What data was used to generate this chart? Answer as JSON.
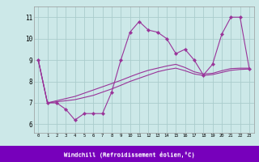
{
  "xlabel": "Windchill (Refroidissement éolien,°C)",
  "bg_color": "#cce8e8",
  "grid_color": "#aacccc",
  "line_color": "#993399",
  "xlabel_bg": "#7700bb",
  "x_ticks": [
    0,
    1,
    2,
    3,
    4,
    5,
    6,
    7,
    8,
    9,
    10,
    11,
    12,
    13,
    14,
    15,
    16,
    17,
    18,
    19,
    20,
    21,
    22,
    23
  ],
  "y_ticks": [
    6,
    7,
    8,
    9,
    10,
    11
  ],
  "ylim": [
    5.6,
    11.5
  ],
  "xlim": [
    -0.5,
    23.5
  ],
  "line1_x": [
    0,
    1,
    2,
    3,
    4,
    5,
    6,
    7,
    8,
    9,
    10,
    11,
    12,
    13,
    14,
    15,
    16,
    17,
    18,
    19,
    20,
    21,
    22,
    23
  ],
  "line1_y": [
    9.0,
    7.0,
    7.0,
    6.7,
    6.2,
    6.5,
    6.5,
    6.5,
    7.5,
    9.0,
    10.3,
    10.8,
    10.4,
    10.3,
    10.0,
    9.3,
    9.5,
    9.0,
    8.3,
    8.8,
    10.2,
    11.0,
    11.0,
    8.6
  ],
  "line2_x": [
    0,
    1,
    2,
    3,
    4,
    5,
    6,
    7,
    8,
    9,
    10,
    11,
    12,
    13,
    14,
    15,
    16,
    17,
    18,
    19,
    20,
    21,
    22,
    23
  ],
  "line2_y": [
    9.0,
    7.0,
    7.05,
    7.1,
    7.15,
    7.25,
    7.35,
    7.5,
    7.65,
    7.82,
    8.0,
    8.15,
    8.3,
    8.45,
    8.55,
    8.62,
    8.5,
    8.35,
    8.28,
    8.32,
    8.42,
    8.52,
    8.56,
    8.58
  ],
  "line3_x": [
    0,
    1,
    2,
    3,
    4,
    5,
    6,
    7,
    8,
    9,
    10,
    11,
    12,
    13,
    14,
    15,
    16,
    17,
    18,
    19,
    20,
    21,
    22,
    23
  ],
  "line3_y": [
    9.0,
    7.0,
    7.1,
    7.2,
    7.3,
    7.45,
    7.6,
    7.75,
    7.9,
    8.05,
    8.22,
    8.38,
    8.52,
    8.62,
    8.72,
    8.8,
    8.65,
    8.45,
    8.35,
    8.38,
    8.5,
    8.6,
    8.62,
    8.62
  ]
}
